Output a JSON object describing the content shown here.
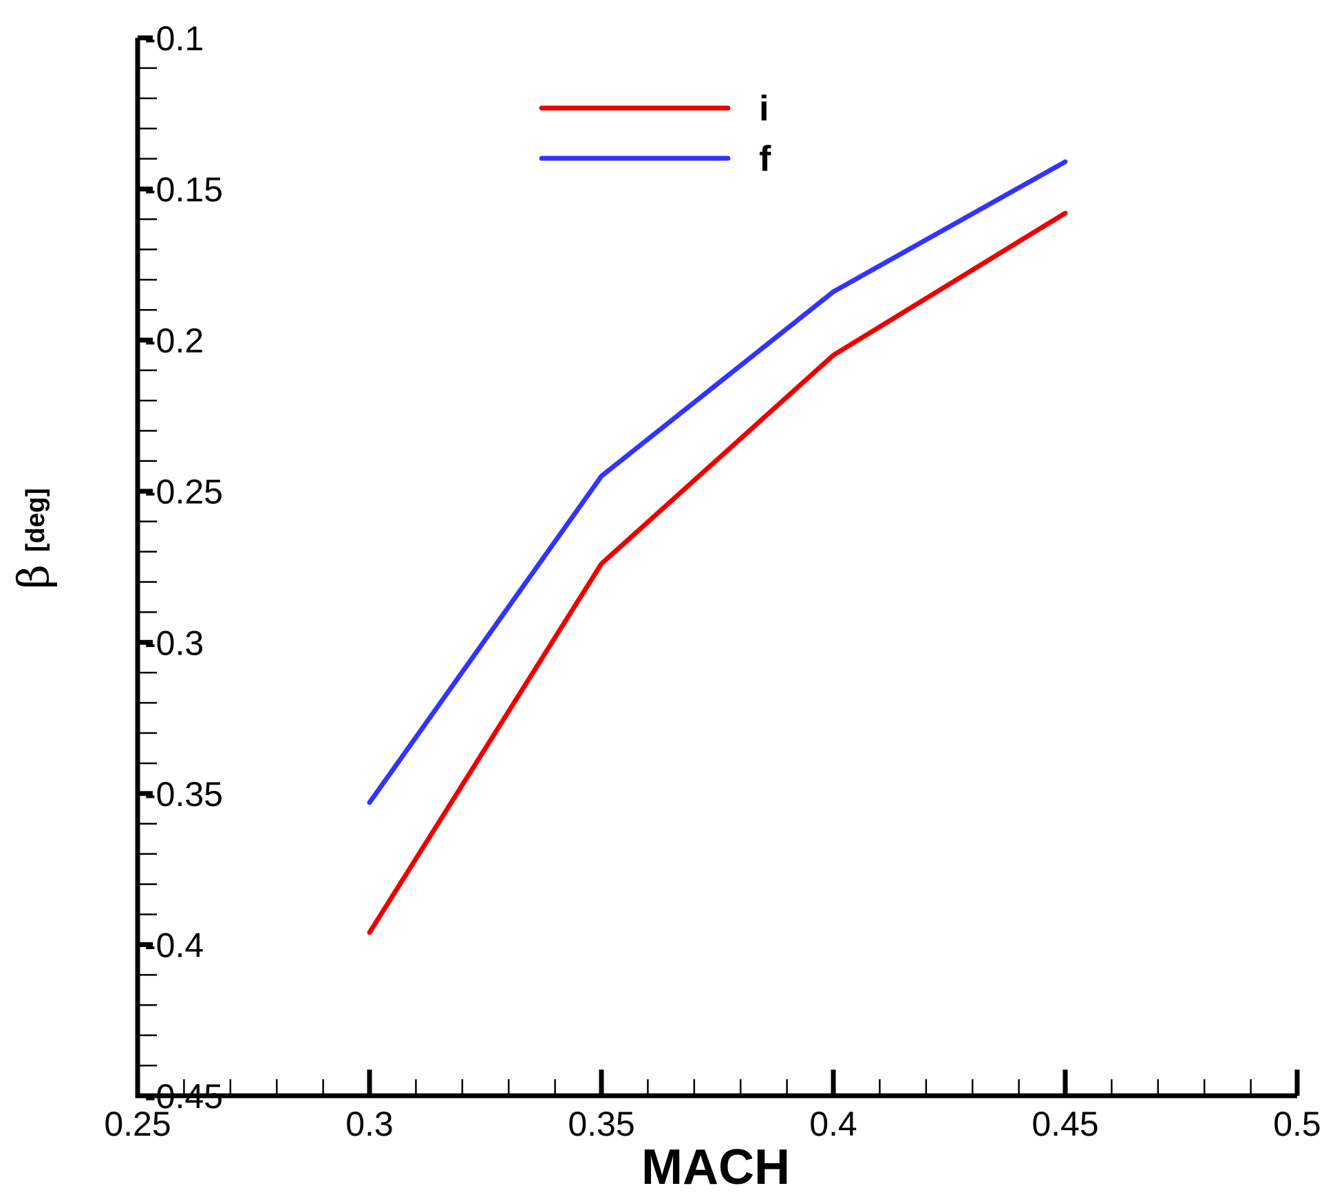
{
  "chart_data": {
    "type": "line",
    "xlabel": "MACH",
    "ylabel": "β",
    "ylabel_sub": "[deg]",
    "xlim": [
      0.25,
      0.5
    ],
    "ylim": [
      -0.45,
      -0.1
    ],
    "x_ticks": [
      "0.25",
      "0.3",
      "0.35",
      "0.4",
      "0.45",
      "0.5"
    ],
    "y_ticks": [
      "-0.1",
      "-0.15",
      "-0.2",
      "-0.25",
      "-0.3",
      "-0.35",
      "-0.4",
      "-0.45"
    ],
    "x": [
      0.3,
      0.35,
      0.4,
      0.45
    ],
    "series": [
      {
        "name": "i",
        "color": "#ee0000",
        "values": [
          -0.396,
          -0.274,
          -0.205,
          -0.158
        ]
      },
      {
        "name": "f",
        "color": "#3333ff",
        "values": [
          -0.353,
          -0.245,
          -0.184,
          -0.141
        ]
      }
    ],
    "legend_position": "top-center",
    "grid": false
  }
}
